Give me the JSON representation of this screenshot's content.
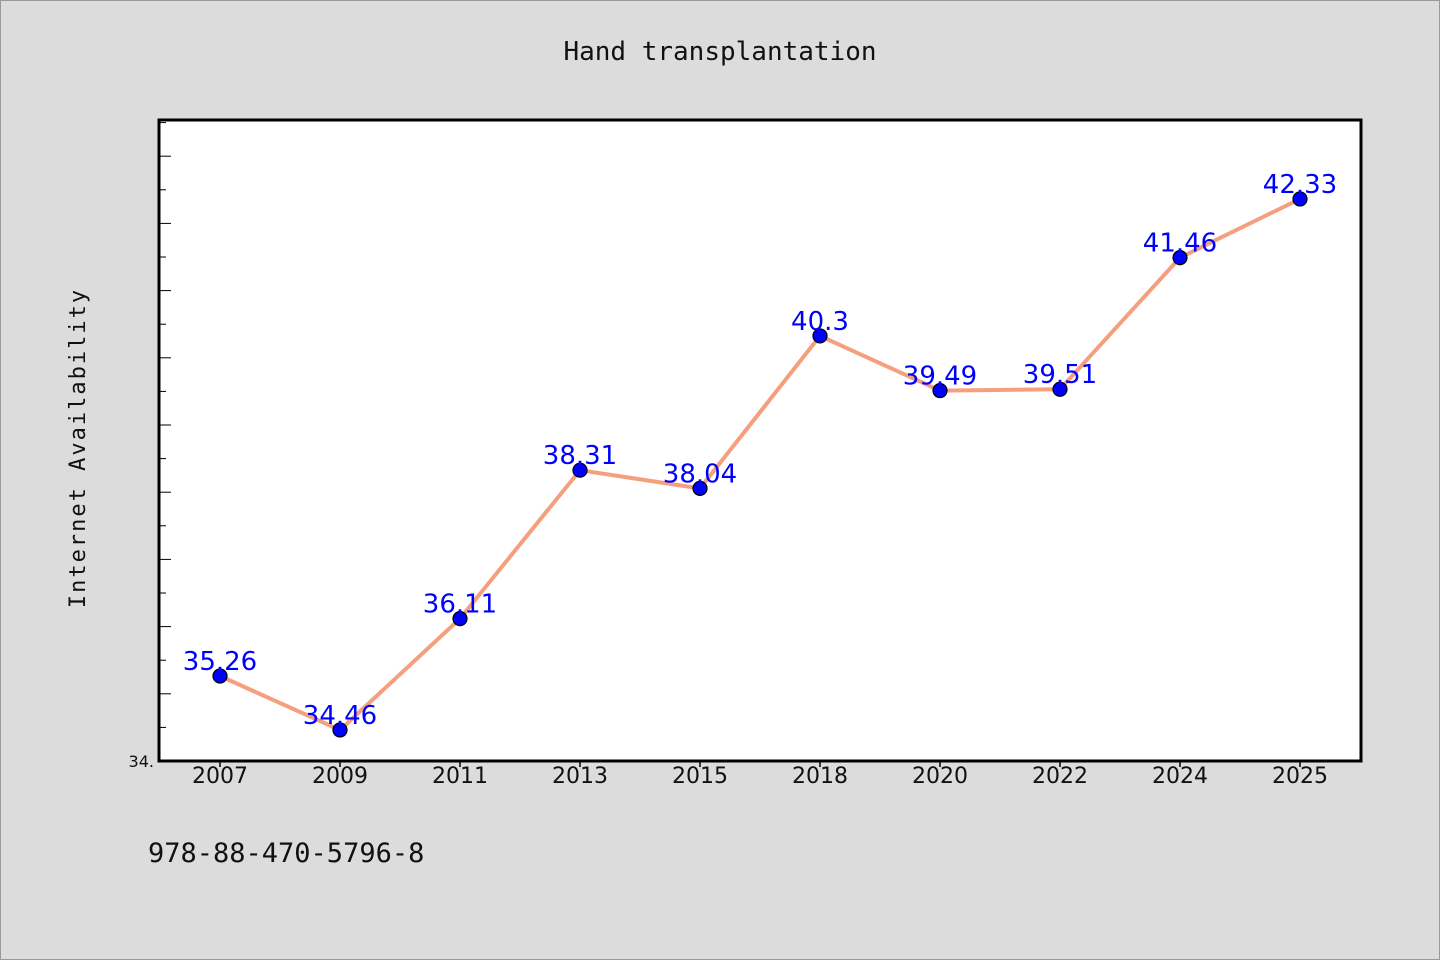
{
  "chart_data": {
    "type": "line",
    "title": "Hand transplantation",
    "xlabel": "",
    "ylabel": "Internet Availability",
    "categories": [
      "2007",
      "2009",
      "2011",
      "2013",
      "2015",
      "2018",
      "2020",
      "2022",
      "2024",
      "2025"
    ],
    "series": [
      {
        "values": [
          35.26,
          34.46,
          36.11,
          38.31,
          38.04,
          40.3,
          39.49,
          39.51,
          41.46,
          42.33
        ]
      }
    ],
    "data_labels": [
      "35.26",
      "34.46",
      "36.11",
      "38.31",
      "38.04",
      "40.3",
      "39.49",
      "39.51",
      "41.46",
      "42.33"
    ],
    "ylim": [
      34.0,
      43.5
    ],
    "y_tick_label": "34.",
    "grid": false,
    "legend": "none",
    "colors": {
      "line": "#f4a07e",
      "marker": "#0000ff",
      "data_label": "#0000ff",
      "plot_background": "#ffffff",
      "figure_background": "#dcdcdc"
    }
  },
  "footer": {
    "isbn": "978-88-470-5796-8"
  }
}
